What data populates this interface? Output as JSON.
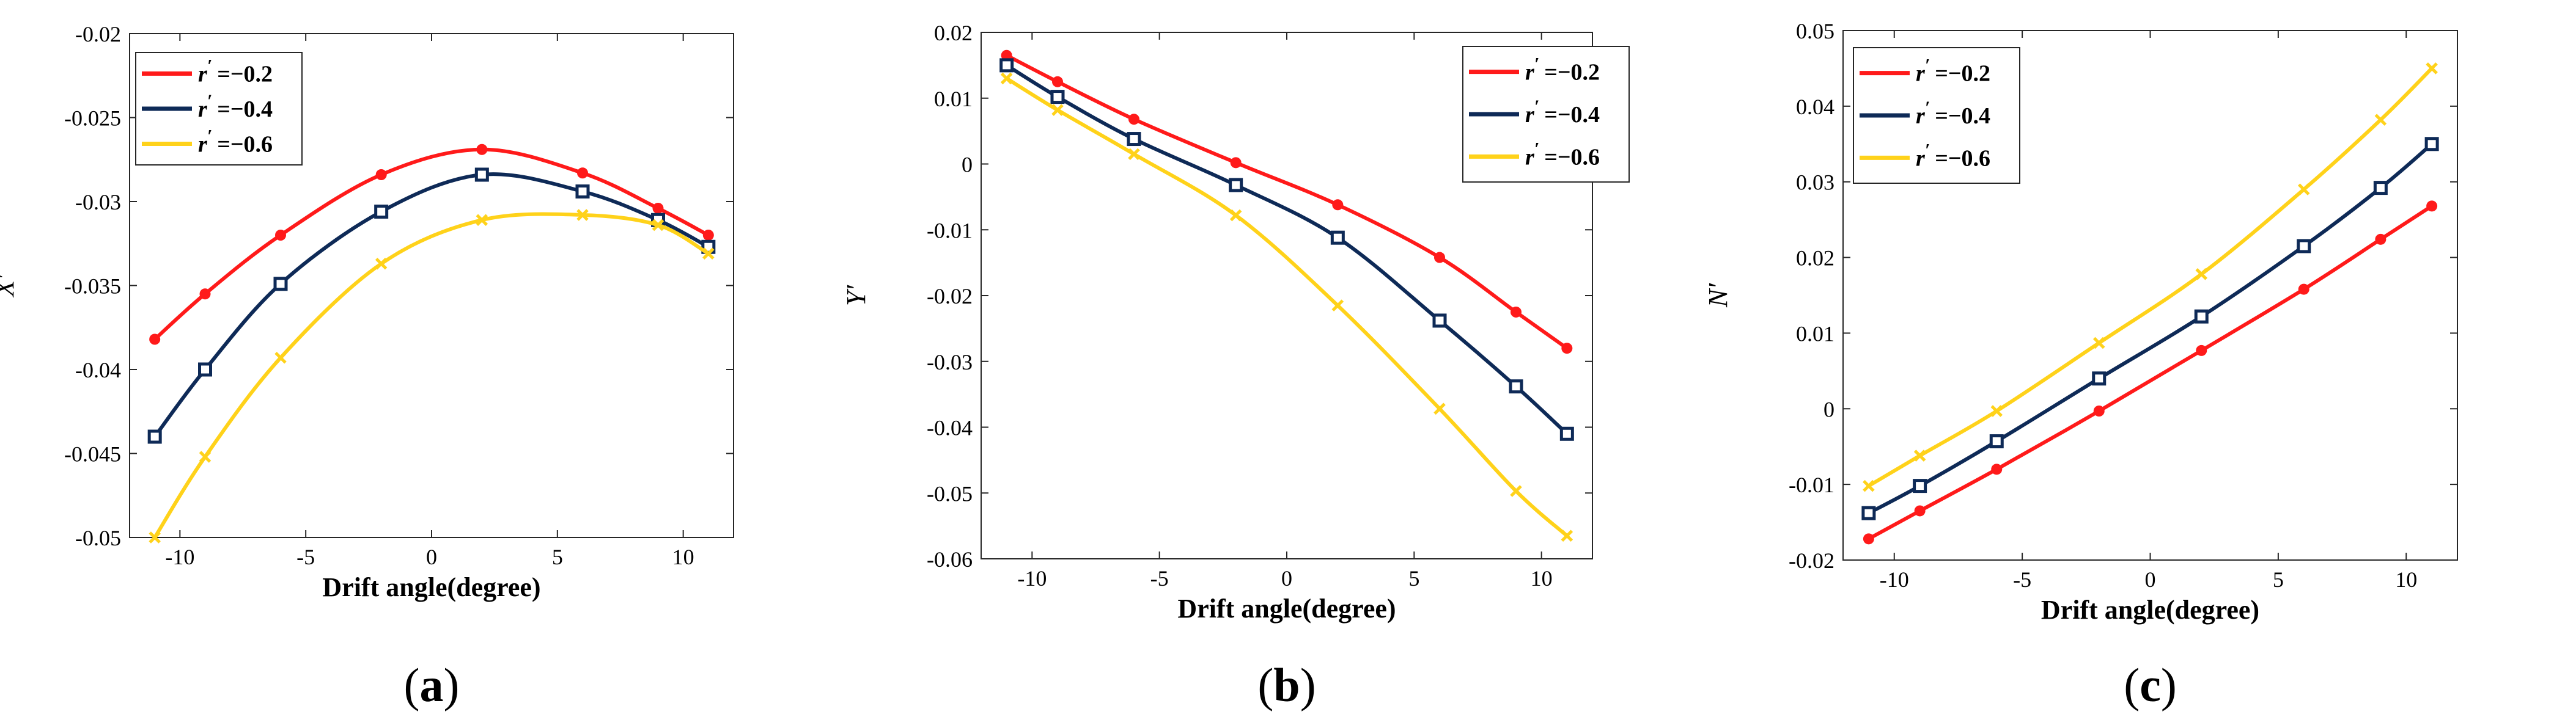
{
  "chart_data": [
    {
      "type": "line",
      "panel": "a",
      "caption": {
        "open": "(",
        "letter": "a",
        "close": ")"
      },
      "xlabel": "Drift angle(degree)",
      "ylabel": "X′",
      "xlim": [
        -12,
        12
      ],
      "ylim": [
        -0.05,
        -0.02
      ],
      "xticks": [
        -10,
        -5,
        0,
        5,
        10
      ],
      "xtick_labels": [
        "-10",
        "-5",
        "0",
        "5",
        "10"
      ],
      "yticks": [
        -0.05,
        -0.045,
        -0.04,
        -0.035,
        -0.03,
        -0.025,
        -0.02
      ],
      "ytick_labels": [
        "-0.05",
        "-0.045",
        "-0.04",
        "-0.035",
        "-0.03",
        "-0.025",
        "-0.02"
      ],
      "legend_position": "top-left",
      "x": [
        -11,
        -9,
        -6,
        -2,
        2,
        6,
        9,
        11
      ],
      "series": [
        {
          "name": "r′ = −0.2",
          "label_sym": "r",
          "label_prime": "′",
          "label_val": "=−0.2",
          "color": "#ff1a1a",
          "marker": "circle",
          "values": [
            -0.0382,
            -0.0355,
            -0.032,
            -0.0284,
            -0.0269,
            -0.0283,
            -0.0304,
            -0.032
          ]
        },
        {
          "name": "r′ = −0.4",
          "label_sym": "r",
          "label_prime": "′",
          "label_val": "=−0.4",
          "color": "#0e2a57",
          "marker": "square",
          "values": [
            -0.044,
            -0.04,
            -0.0349,
            -0.0306,
            -0.0284,
            -0.0294,
            -0.0311,
            -0.0327
          ]
        },
        {
          "name": "r′ = −0.6",
          "label_sym": "r",
          "label_prime": "′",
          "label_val": "=−0.6",
          "color": "#ffd21a",
          "marker": "x",
          "values": [
            -0.05,
            -0.0452,
            -0.0393,
            -0.0337,
            -0.0311,
            -0.0308,
            -0.0314,
            -0.0331
          ]
        }
      ]
    },
    {
      "type": "line",
      "panel": "b",
      "caption": {
        "open": "(",
        "letter": "b",
        "close": ")"
      },
      "xlabel": "Drift angle(degree)",
      "ylabel": "Y′",
      "xlim": [
        -12,
        12
      ],
      "ylim": [
        -0.06,
        0.02
      ],
      "xticks": [
        -10,
        -5,
        0,
        5,
        10
      ],
      "xtick_labels": [
        "-10",
        "-5",
        "0",
        "5",
        "10"
      ],
      "yticks": [
        -0.06,
        -0.05,
        -0.04,
        -0.03,
        -0.02,
        -0.01,
        0,
        0.01,
        0.02
      ],
      "ytick_labels": [
        "-0.06",
        "-0.05",
        "-0.04",
        "-0.03",
        "-0.02",
        "-0.01",
        "0",
        "0.01",
        "0.02"
      ],
      "legend_position": "top-right",
      "x": [
        -11,
        -9,
        -6,
        -2,
        2,
        6,
        9,
        11
      ],
      "series": [
        {
          "name": "r′ = −0.2",
          "label_sym": "r",
          "label_prime": "′",
          "label_val": "=−0.2",
          "color": "#ff1a1a",
          "marker": "circle",
          "values": [
            0.0165,
            0.0125,
            0.0068,
            0.0002,
            -0.0062,
            -0.0142,
            -0.0225,
            -0.028
          ]
        },
        {
          "name": "r′ = −0.4",
          "label_sym": "r",
          "label_prime": "′",
          "label_val": "=−0.4",
          "color": "#0e2a57",
          "marker": "square",
          "values": [
            0.015,
            0.0102,
            0.0038,
            -0.0032,
            -0.0112,
            -0.0238,
            -0.0338,
            -0.041
          ]
        },
        {
          "name": "r′ = −0.6",
          "label_sym": "r",
          "label_prime": "′",
          "label_val": "=−0.6",
          "color": "#ffd21a",
          "marker": "x",
          "values": [
            0.013,
            0.0082,
            0.0015,
            -0.0078,
            -0.0215,
            -0.0372,
            -0.0497,
            -0.0565
          ]
        }
      ]
    },
    {
      "type": "line",
      "panel": "c",
      "caption": {
        "open": "(",
        "letter": "c",
        "close": ")"
      },
      "xlabel": "Drift angle(degree)",
      "ylabel": "N′",
      "xlim": [
        -12,
        12
      ],
      "ylim": [
        -0.02,
        0.05
      ],
      "xticks": [
        -10,
        -5,
        0,
        5,
        10
      ],
      "xtick_labels": [
        "-10",
        "-5",
        "0",
        "5",
        "10"
      ],
      "yticks": [
        -0.02,
        -0.01,
        0,
        0.01,
        0.02,
        0.03,
        0.04,
        0.05
      ],
      "ytick_labels": [
        "-0.02",
        "-0.01",
        "0",
        "0.01",
        "0.02",
        "0.03",
        "0.04",
        "0.05"
      ],
      "legend_position": "top-left",
      "x": [
        -11,
        -9,
        -6,
        -2,
        2,
        6,
        9,
        11
      ],
      "series": [
        {
          "name": "r′ = −0.2",
          "label_sym": "r",
          "label_prime": "′",
          "label_val": "=−0.2",
          "color": "#ff1a1a",
          "marker": "circle",
          "values": [
            -0.0172,
            -0.0135,
            -0.008,
            -0.0003,
            0.0077,
            0.0158,
            0.0224,
            0.0268
          ]
        },
        {
          "name": "r′ = −0.4",
          "label_sym": "r",
          "label_prime": "′",
          "label_val": "=−0.4",
          "color": "#0e2a57",
          "marker": "square",
          "values": [
            -0.0138,
            -0.0102,
            -0.0043,
            0.004,
            0.0122,
            0.0215,
            0.0292,
            0.035
          ]
        },
        {
          "name": "r′ = −0.6",
          "label_sym": "r",
          "label_prime": "′",
          "label_val": "=−0.6",
          "color": "#ffd21a",
          "marker": "x",
          "values": [
            -0.0102,
            -0.0062,
            -0.0003,
            0.0087,
            0.0178,
            0.029,
            0.0382,
            0.045
          ]
        }
      ]
    }
  ]
}
